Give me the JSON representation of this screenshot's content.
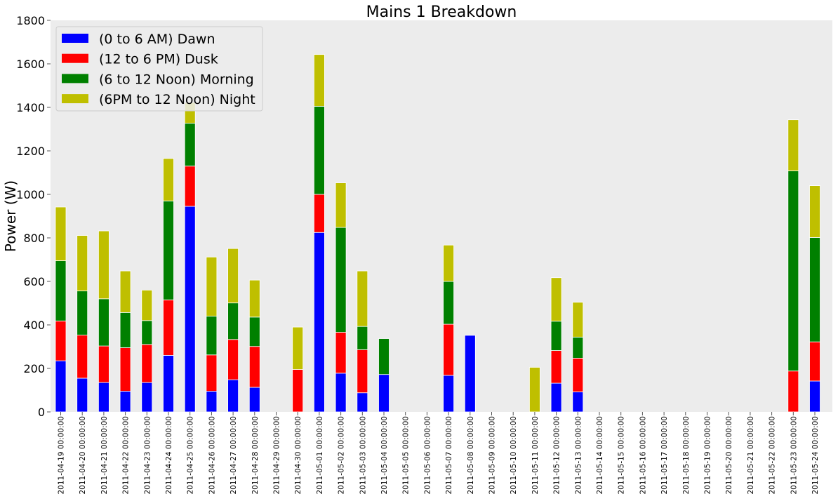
{
  "chart_data": {
    "type": "bar",
    "stacked": true,
    "title": "Mains 1 Breakdown",
    "xlabel": "",
    "ylabel": "Power (W)",
    "ylim": [
      0,
      1800
    ],
    "yticks": [
      0,
      200,
      400,
      600,
      800,
      1000,
      1200,
      1400,
      1600,
      1800
    ],
    "grid": false,
    "legend_position": "top-left",
    "categories": [
      "2011-04-19 00:00:00",
      "2011-04-20 00:00:00",
      "2011-04-21 00:00:00",
      "2011-04-22 00:00:00",
      "2011-04-23 00:00:00",
      "2011-04-24 00:00:00",
      "2011-04-25 00:00:00",
      "2011-04-26 00:00:00",
      "2011-04-27 00:00:00",
      "2011-04-28 00:00:00",
      "2011-04-29 00:00:00",
      "2011-04-30 00:00:00",
      "2011-05-01 00:00:00",
      "2011-05-02 00:00:00",
      "2011-05-03 00:00:00",
      "2011-05-04 00:00:00",
      "2011-05-05 00:00:00",
      "2011-05-06 00:00:00",
      "2011-05-07 00:00:00",
      "2011-05-08 00:00:00",
      "2011-05-09 00:00:00",
      "2011-05-10 00:00:00",
      "2011-05-11 00:00:00",
      "2011-05-12 00:00:00",
      "2011-05-13 00:00:00",
      "2011-05-14 00:00:00",
      "2011-05-15 00:00:00",
      "2011-05-16 00:00:00",
      "2011-05-17 00:00:00",
      "2011-05-18 00:00:00",
      "2011-05-19 00:00:00",
      "2011-05-20 00:00:00",
      "2011-05-21 00:00:00",
      "2011-05-22 00:00:00",
      "2011-05-23 00:00:00",
      "2011-05-24 00:00:00"
    ],
    "series": [
      {
        "name": "(0 to 6 AM) Dawn",
        "color": "#0000ff",
        "values": [
          235,
          155,
          135,
          95,
          135,
          260,
          945,
          95,
          148,
          113,
          0,
          0,
          825,
          178,
          88,
          172,
          0,
          0,
          168,
          352,
          0,
          0,
          0,
          132,
          92,
          0,
          0,
          0,
          0,
          0,
          0,
          0,
          0,
          0,
          0,
          142
        ]
      },
      {
        "name": "(12 to 6 PM) Dusk",
        "color": "#ff0000",
        "values": [
          183,
          198,
          168,
          200,
          175,
          255,
          185,
          167,
          185,
          188,
          0,
          195,
          175,
          188,
          198,
          0,
          0,
          0,
          235,
          0,
          0,
          0,
          0,
          150,
          155,
          0,
          0,
          0,
          0,
          0,
          0,
          0,
          0,
          0,
          188,
          180
        ]
      },
      {
        "name": "(6 to 12 Noon) Morning",
        "color": "#008000",
        "values": [
          277,
          203,
          217,
          162,
          110,
          455,
          197,
          178,
          168,
          135,
          0,
          0,
          405,
          482,
          107,
          165,
          0,
          0,
          197,
          0,
          0,
          0,
          0,
          135,
          97,
          0,
          0,
          0,
          0,
          0,
          0,
          0,
          0,
          0,
          920,
          480
        ]
      },
      {
        "name": "(6PM to 12 Noon) Night",
        "color": "#bfbf00",
        "values": [
          247,
          255,
          312,
          191,
          140,
          195,
          95,
          272,
          250,
          170,
          0,
          195,
          238,
          205,
          255,
          0,
          0,
          0,
          167,
          0,
          0,
          0,
          205,
          200,
          160,
          0,
          0,
          0,
          0,
          0,
          0,
          0,
          0,
          0,
          235,
          238
        ]
      }
    ]
  }
}
